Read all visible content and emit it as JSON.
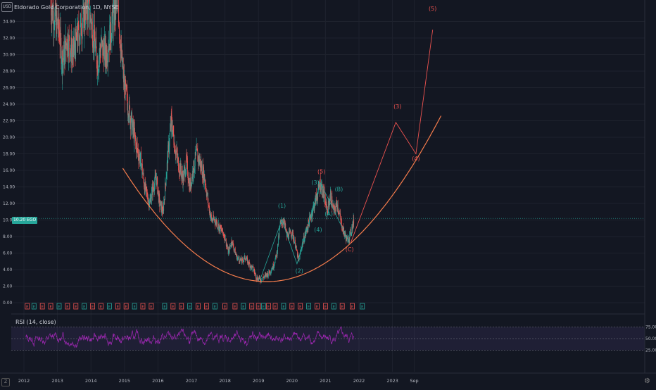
{
  "header": {
    "title": "Eldorado Gold Corporation, 1D, NYSE",
    "currency_badge": "USD",
    "last_price_label": "10.20",
    "last_price_label2": "EGO"
  },
  "rsi_panel": {
    "title": "RSI (14, close)",
    "levels": [
      "75.00",
      "50.00",
      "25.00"
    ]
  },
  "colors": {
    "background": "#131722",
    "grid": "#1e222d",
    "candle_up": "#26a69a",
    "candle_down": "#ef5350",
    "wave_bull": "#26a69a",
    "wave_bear": "#ef5350",
    "curve": "#f57c4c",
    "rsi": "#9c27b0",
    "rsi_band": "#7e57c2"
  },
  "chart_data": [
    {
      "type": "line",
      "title": "Eldorado Gold Corporation, 1D, NYSE",
      "x_ticks": [
        "2012",
        "2013",
        "2014",
        "2015",
        "2016",
        "2017",
        "2018",
        "2019",
        "2020",
        "2021",
        "2022",
        "2023",
        "Sep"
      ],
      "y_ticks": [
        "0.00",
        "2.00",
        "4.00",
        "6.00",
        "8.00",
        "10.00",
        "12.00",
        "14.00",
        "16.00",
        "18.00",
        "20.00",
        "22.00",
        "24.00",
        "26.00",
        "28.00",
        "30.00",
        "32.00",
        "34.00"
      ],
      "ylim": [
        -0.5,
        37
      ],
      "price_path": [
        [
          2012.8,
          36
        ],
        [
          2012.95,
          34
        ],
        [
          2013.05,
          33
        ],
        [
          2013.15,
          29
        ],
        [
          2013.3,
          32
        ],
        [
          2013.45,
          30
        ],
        [
          2013.6,
          32
        ],
        [
          2013.75,
          34
        ],
        [
          2013.9,
          36
        ],
        [
          2014.05,
          33
        ],
        [
          2014.2,
          29
        ],
        [
          2014.3,
          31
        ],
        [
          2014.45,
          30
        ],
        [
          2014.6,
          33
        ],
        [
          2014.7,
          35
        ],
        [
          2014.8,
          37
        ],
        [
          2014.9,
          30
        ],
        [
          2015.0,
          26
        ],
        [
          2015.1,
          24
        ],
        [
          2015.2,
          22
        ],
        [
          2015.35,
          19
        ],
        [
          2015.5,
          17
        ],
        [
          2015.6,
          14
        ],
        [
          2015.75,
          12
        ],
        [
          2015.85,
          14
        ],
        [
          2015.95,
          15
        ],
        [
          2016.05,
          12
        ],
        [
          2016.15,
          11
        ],
        [
          2016.3,
          18
        ],
        [
          2016.4,
          22
        ],
        [
          2016.5,
          19
        ],
        [
          2016.6,
          17
        ],
        [
          2016.75,
          15
        ],
        [
          2016.85,
          17
        ],
        [
          2016.95,
          14
        ],
        [
          2017.05,
          16
        ],
        [
          2017.15,
          18
        ],
        [
          2017.25,
          17
        ],
        [
          2017.4,
          15
        ],
        [
          2017.5,
          12
        ],
        [
          2017.6,
          10
        ],
        [
          2017.7,
          10
        ],
        [
          2017.85,
          9
        ],
        [
          2018.0,
          8
        ],
        [
          2018.1,
          6
        ],
        [
          2018.2,
          7.5
        ],
        [
          2018.35,
          5.5
        ],
        [
          2018.5,
          5
        ],
        [
          2018.6,
          5.5
        ],
        [
          2018.75,
          4.5
        ],
        [
          2018.85,
          4
        ],
        [
          2018.95,
          3
        ],
        [
          2019.05,
          2.8
        ],
        [
          2019.2,
          3.2
        ],
        [
          2019.35,
          3.8
        ],
        [
          2019.45,
          4.5
        ],
        [
          2019.55,
          6
        ],
        [
          2019.65,
          9.5
        ],
        [
          2019.75,
          10
        ],
        [
          2019.85,
          8
        ],
        [
          2020.0,
          8.5
        ],
        [
          2020.1,
          7
        ],
        [
          2020.2,
          5
        ],
        [
          2020.3,
          7
        ],
        [
          2020.45,
          9
        ],
        [
          2020.6,
          11
        ],
        [
          2020.75,
          13
        ],
        [
          2020.85,
          14.5
        ],
        [
          2020.95,
          13
        ],
        [
          2021.05,
          11
        ],
        [
          2021.15,
          13
        ],
        [
          2021.25,
          11
        ],
        [
          2021.35,
          12
        ],
        [
          2021.45,
          10
        ],
        [
          2021.55,
          8.5
        ],
        [
          2021.65,
          7.5
        ],
        [
          2021.75,
          8.5
        ],
        [
          2021.85,
          10
        ]
      ],
      "last_price": 10.2,
      "elliott_labels": [
        {
          "text": "(1)",
          "x": 2019.7,
          "y": 11.5,
          "color": "bull"
        },
        {
          "text": "(2)",
          "x": 2020.22,
          "y": 3.6,
          "color": "bull"
        },
        {
          "text": "(3)",
          "x": 2020.7,
          "y": 14.3,
          "color": "bull"
        },
        {
          "text": "(4)",
          "x": 2020.78,
          "y": 8.6,
          "color": "bull"
        },
        {
          "text": "(5)",
          "x": 2020.88,
          "y": 15.6,
          "color": "bear"
        },
        {
          "text": "(A)",
          "x": 2021.1,
          "y": 10.5,
          "color": "bull"
        },
        {
          "text": "(B)",
          "x": 2021.4,
          "y": 13.5,
          "color": "bull"
        },
        {
          "text": "(C)",
          "x": 2021.72,
          "y": 6.2,
          "color": "bear"
        },
        {
          "text": "(3)",
          "x": 2023.15,
          "y": 23.5,
          "color": "bear"
        },
        {
          "text": "(4)",
          "x": 2023.7,
          "y": 17.2,
          "color": "bear"
        },
        {
          "text": "(5)",
          "x": 2024.2,
          "y": 35.3,
          "color": "bear"
        }
      ],
      "projection_path": [
        [
          2021.75,
          7.2
        ],
        [
          2023.1,
          21.8
        ],
        [
          2023.7,
          18
        ],
        [
          2024.2,
          33
        ]
      ],
      "bull_wave_path": [
        [
          2019.05,
          2.8
        ],
        [
          2019.7,
          10
        ],
        [
          2020.15,
          4.7
        ],
        [
          2020.85,
          14.5
        ],
        [
          2021.7,
          7.4
        ]
      ],
      "curve": {
        "vertex_x": 2019.25,
        "vertex_y": 2.55,
        "end_x": 2024.45,
        "end_y": 22.6
      },
      "flag_row_label": "E"
    },
    {
      "type": "line",
      "title": "RSI (14, close)",
      "ylim": [
        0,
        100
      ],
      "levels": [
        75,
        50,
        25
      ],
      "y_ticks": [
        "75.00",
        "50.00",
        "25.00"
      ]
    }
  ]
}
